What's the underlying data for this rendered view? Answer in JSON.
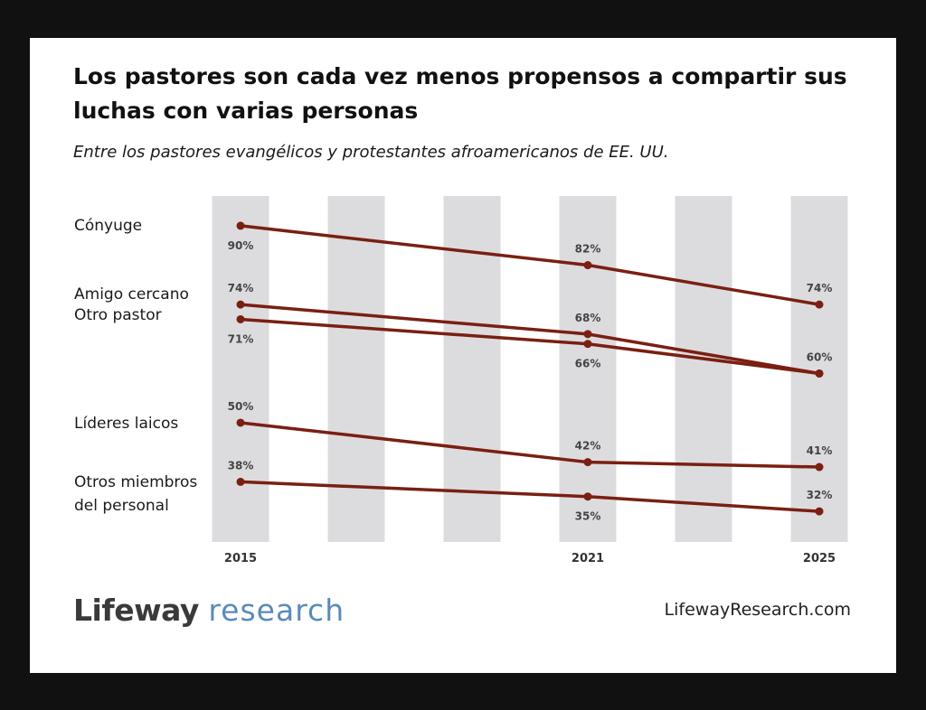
{
  "title": "Los pastores son cada vez menos propensos a compartir sus luchas con varias personas",
  "subtitle": "Entre los pastores evangélicos y protestantes afroamericanos de EE. UU.",
  "brand": {
    "name_bold": "Lifeway",
    "name_light": "research",
    "website": "LifewayResearch.com"
  },
  "colors": {
    "line": "#7a1f12",
    "band": "#dcdcdf",
    "brand_blue": "#5b8bb8"
  },
  "chart_data": {
    "type": "line",
    "title": "Los pastores son cada vez menos propensos a compartir sus luchas con varias personas",
    "subtitle": "Entre los pastores evangélicos y protestantes afroamericanos de EE. UU.",
    "x_range": [
      2015,
      2025
    ],
    "x_ticks": [
      2015,
      2021,
      2025
    ],
    "y_range": [
      30,
      92
    ],
    "value_suffix": "%",
    "series": [
      {
        "name": "Cónyuge",
        "x": [
          2015,
          2021,
          2025
        ],
        "values": [
          90,
          82,
          74
        ],
        "label_pos": [
          "below",
          "above",
          "above"
        ]
      },
      {
        "name": "Amigo cercano",
        "x": [
          2015,
          2021,
          2025
        ],
        "values": [
          74,
          68,
          60
        ],
        "label_pos": [
          "above",
          "above",
          "above"
        ]
      },
      {
        "name": "Otro pastor",
        "x": [
          2015,
          2021,
          2025
        ],
        "values": [
          71,
          66,
          60
        ],
        "label_pos": [
          "below",
          "below",
          "none"
        ]
      },
      {
        "name": "Líderes laicos",
        "x": [
          2015,
          2021,
          2025
        ],
        "values": [
          50,
          42,
          41
        ],
        "label_pos": [
          "above",
          "above",
          "above"
        ]
      },
      {
        "name": "Otros miembros del personal",
        "x": [
          2015,
          2021,
          2025
        ],
        "values": [
          38,
          35,
          32
        ],
        "label_pos": [
          "above",
          "below",
          "above"
        ]
      }
    ]
  }
}
